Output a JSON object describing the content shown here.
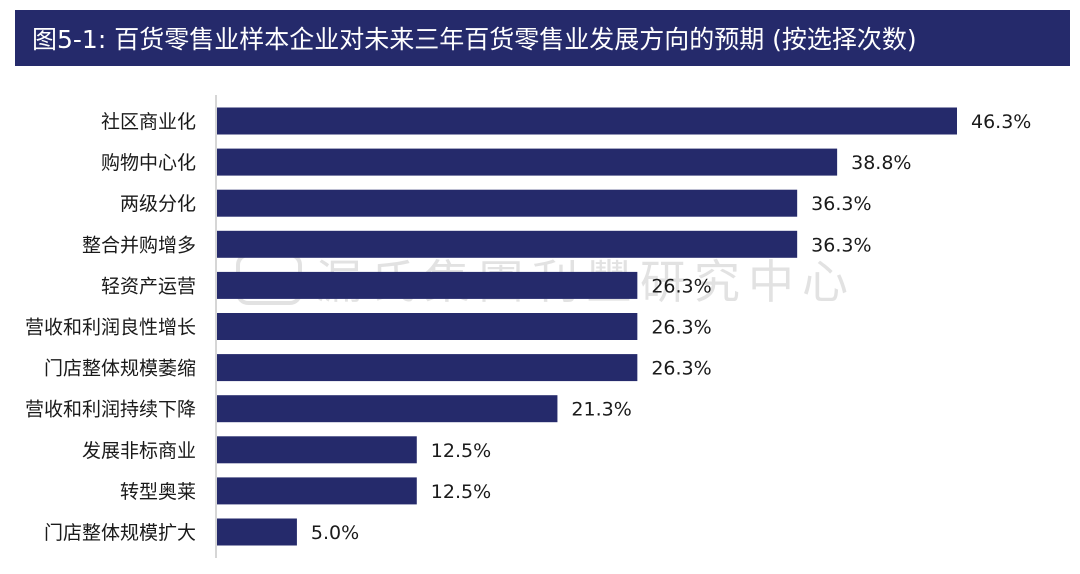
{
  "header": {
    "title": "图5-1: 百货零售业样本企业对未来三年百货零售业发展方向的预期 (按选择次数)"
  },
  "watermark": {
    "text": "漏氏集團利豐研究中心"
  },
  "colors": {
    "bar": "#252a6b",
    "title_bg": "#252a6b",
    "axis": "#c8c8c8",
    "label": "#1a1a1a"
  },
  "chart_data": {
    "type": "bar",
    "orientation": "horizontal",
    "categories": [
      "社区商业化",
      "购物中心化",
      "两级分化",
      "整合并购增多",
      "轻资产运营",
      "营收和利润良性增长",
      "门店整体规模萎缩",
      "营收和利润持续下降",
      "发展非标商业",
      "转型奥莱",
      "门店整体规模扩大"
    ],
    "values": [
      46.3,
      38.8,
      36.3,
      36.3,
      26.3,
      26.3,
      26.3,
      21.3,
      12.5,
      12.5,
      5.0
    ],
    "value_labels": [
      "46.3%",
      "38.8%",
      "36.3%",
      "36.3%",
      "26.3%",
      "26.3%",
      "26.3%",
      "21.3%",
      "12.5%",
      "12.5%",
      "5.0%"
    ],
    "xlim": [
      0,
      46.3
    ],
    "grid": false,
    "legend": "none"
  }
}
